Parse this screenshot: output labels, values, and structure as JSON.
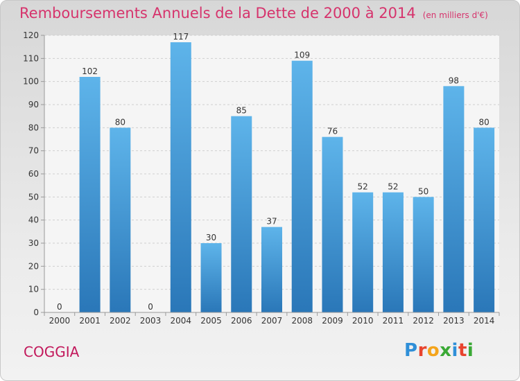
{
  "chart_data": {
    "type": "bar",
    "title": "Remboursements Annuels de la Dette de 2000 à 2014",
    "subtitle": "(en milliers d'€)",
    "categories": [
      "2000",
      "2001",
      "2002",
      "2003",
      "2004",
      "2005",
      "2006",
      "2007",
      "2008",
      "2009",
      "2010",
      "2011",
      "2012",
      "2013",
      "2014"
    ],
    "values": [
      0,
      102,
      80,
      0,
      117,
      30,
      85,
      37,
      109,
      76,
      52,
      52,
      50,
      98,
      80
    ],
    "ylim": [
      0,
      120
    ],
    "yticks": [
      0,
      10,
      20,
      30,
      40,
      50,
      60,
      70,
      80,
      90,
      100,
      110,
      120
    ],
    "grid": true,
    "bar_color": "#3f97d9"
  },
  "footer": {
    "commune": "COGGIA",
    "logo": "Proxiti"
  },
  "colors": {
    "title": "#d6336c",
    "commune": "#c2185b",
    "logo_letters": [
      "#2f8fd8",
      "#e8442e",
      "#f4a41b",
      "#3aa935",
      "#2f8fd8",
      "#e8442e",
      "#3aa935"
    ]
  }
}
